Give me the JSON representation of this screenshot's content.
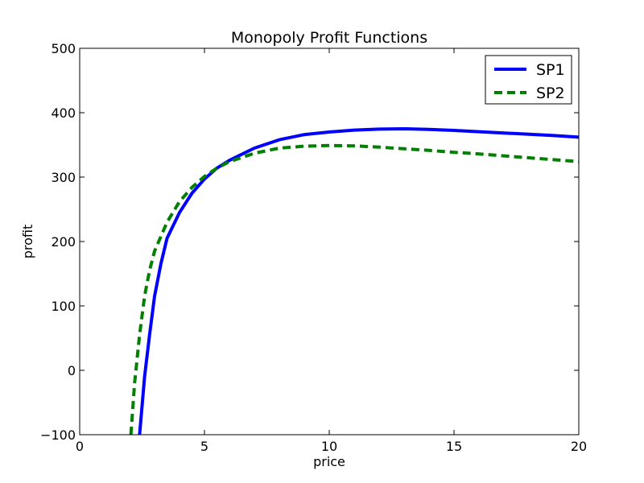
{
  "chart_data": {
    "type": "line",
    "title": "Monopoly Profit Functions",
    "xlabel": "price",
    "ylabel": "profit",
    "xlim": [
      0,
      20
    ],
    "ylim": [
      -100,
      500
    ],
    "xticks": [
      0,
      5,
      10,
      15,
      20
    ],
    "yticks": [
      -100,
      0,
      100,
      200,
      300,
      400,
      500
    ],
    "grid": false,
    "legend": "top-right",
    "series": [
      {
        "name": "SP1",
        "color": "#0000ff",
        "style": "solid",
        "x": [
          2.4,
          2.6,
          2.8,
          3.0,
          3.25,
          3.5,
          4.0,
          4.5,
          5.0,
          5.5,
          6.0,
          7.0,
          8.0,
          9.0,
          10.0,
          11.0,
          12.0,
          13.0,
          14.0,
          15.0,
          16.0,
          17.0,
          18.0,
          19.0,
          20.0
        ],
        "y": [
          -100,
          -10,
          55,
          115,
          165,
          205,
          245,
          275,
          297,
          314,
          326,
          345,
          358,
          366,
          370,
          373,
          374.5,
          375,
          374,
          372.5,
          370.5,
          368.5,
          366.5,
          364.5,
          362
        ]
      },
      {
        "name": "SP2",
        "color": "#008000",
        "style": "dashed",
        "x": [
          2.05,
          2.2,
          2.4,
          2.6,
          2.8,
          3.0,
          3.5,
          4.0,
          4.5,
          5.0,
          5.5,
          6.0,
          7.0,
          8.0,
          9.0,
          10.0,
          11.0,
          12.0,
          13.0,
          14.0,
          15.0,
          16.0,
          17.0,
          18.0,
          19.0,
          20.0
        ],
        "y": [
          -100,
          -20,
          55,
          115,
          155,
          185,
          230,
          262,
          284,
          301,
          314,
          324,
          337,
          345,
          348,
          349,
          348.5,
          346.5,
          344,
          341.5,
          338.5,
          336,
          333,
          330,
          327,
          324
        ]
      }
    ]
  }
}
